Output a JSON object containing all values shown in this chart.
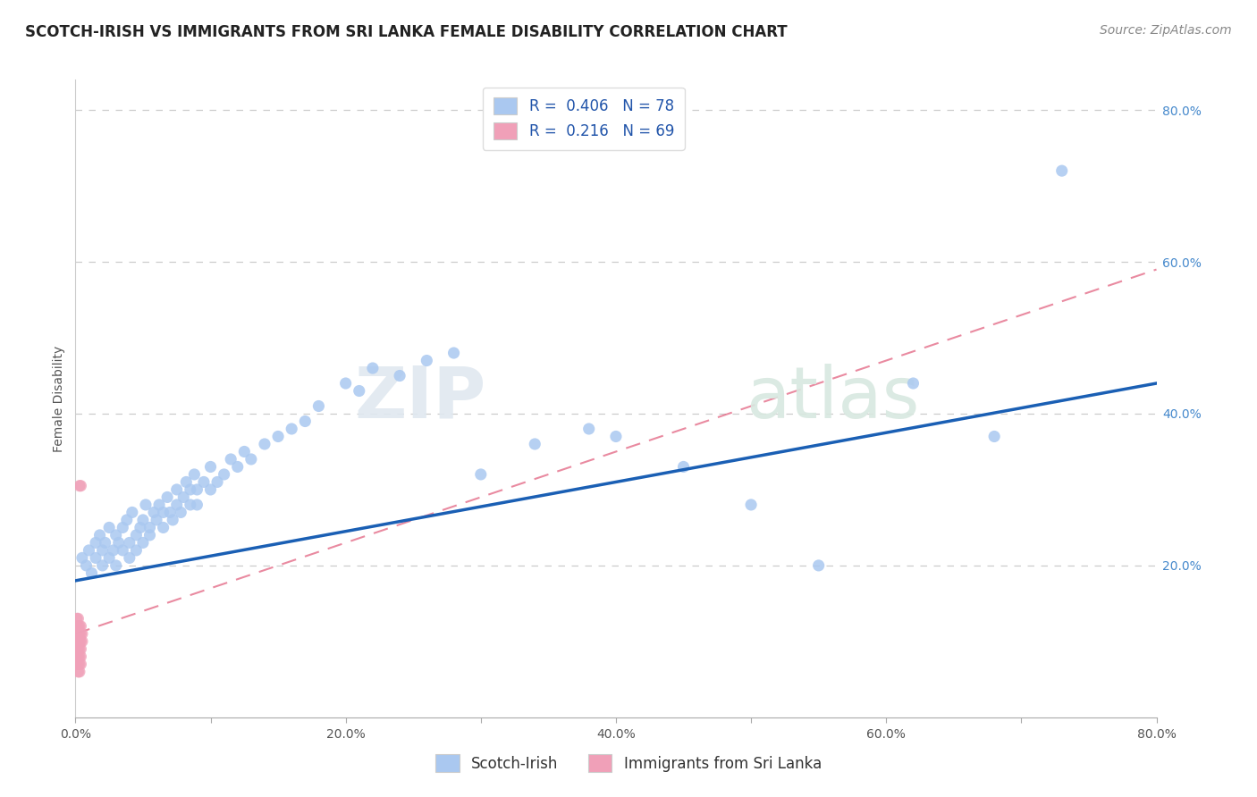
{
  "title": "SCOTCH-IRISH VS IMMIGRANTS FROM SRI LANKA FEMALE DISABILITY CORRELATION CHART",
  "source": "Source: ZipAtlas.com",
  "ylabel": "Female Disability",
  "legend_bottom": [
    "Scotch-Irish",
    "Immigrants from Sri Lanka"
  ],
  "r_scotch_irish": 0.406,
  "n_scotch_irish": 78,
  "r_sri_lanka": 0.216,
  "n_sri_lanka": 69,
  "color_scotch_irish": "#aac8f0",
  "color_sri_lanka": "#f0a0b8",
  "line_color_scotch_irish": "#1a5fb4",
  "line_color_sri_lanka": "#e05878",
  "diagonal_color": "#f0b0c0",
  "xlim": [
    0.0,
    0.8
  ],
  "ylim": [
    0.0,
    0.84
  ],
  "background_color": "#ffffff",
  "grid_color": "#cccccc",
  "si_intercept": 0.18,
  "si_slope": 0.325,
  "sl_intercept": 0.11,
  "sl_slope": 0.6,
  "watermark_zip": "ZIP",
  "watermark_atlas": "atlas"
}
